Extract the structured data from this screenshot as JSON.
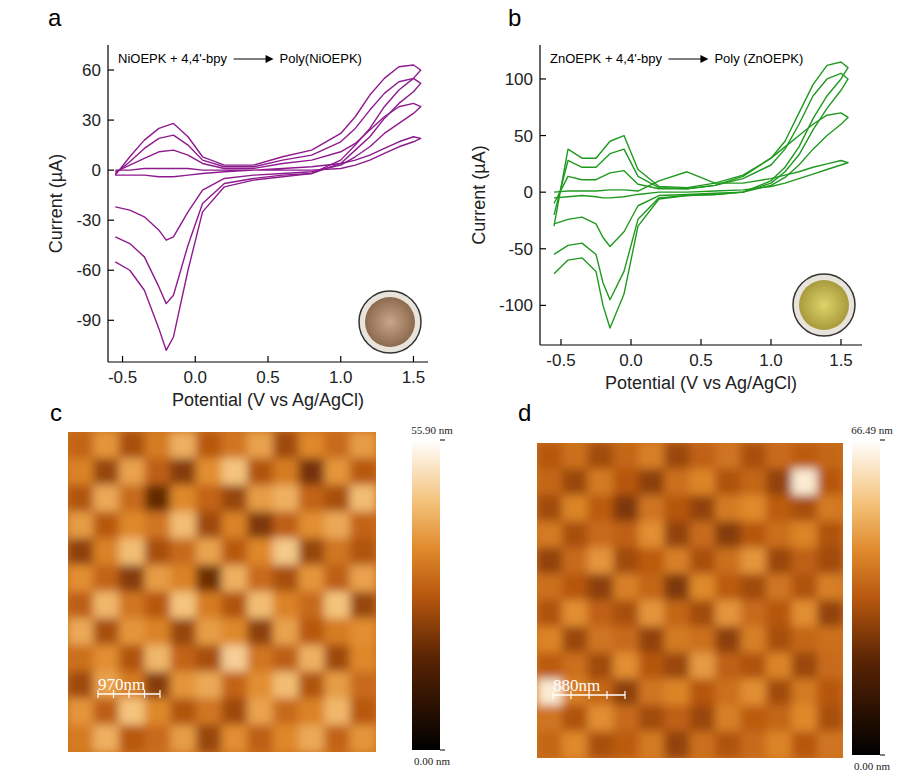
{
  "chart_data": [
    {
      "type": "line",
      "panel_label": "a",
      "annotations": [
        "NiOEPK + 4,4'-bpy",
        "Poly(NiOEPK)"
      ],
      "x_label": "Potential (V vs Ag/AgCl)",
      "y_label": "Current (µA)",
      "xlim": [
        -0.6,
        1.6
      ],
      "xticks": [
        -0.5,
        {
          "value": 0,
          "label": "0.0"
        },
        0.5,
        {
          "value": 1,
          "label": "1.0"
        },
        1.5
      ],
      "ylim": [
        -115,
        75
      ],
      "yticks": [
        -90,
        -60,
        -30,
        0,
        30,
        60
      ],
      "x": [
        -0.55,
        -0.45,
        -0.35,
        -0.25,
        -0.15,
        -0.05,
        0.05,
        0.2,
        0.4,
        0.6,
        0.8,
        1.0,
        1.1,
        1.2,
        1.3,
        1.4,
        1.5,
        1.55,
        1.5,
        1.4,
        1.3,
        1.2,
        1.1,
        1.0,
        0.8,
        0.6,
        0.4,
        0.2,
        0.05,
        -0.05,
        -0.15,
        -0.2,
        -0.25,
        -0.35,
        -0.45,
        -0.55
      ],
      "series": [
        {
          "color": "#8e1a8e",
          "values": [
            0,
            0,
            1,
            1,
            1,
            1,
            0,
            0,
            0,
            1,
            2,
            4,
            6,
            9,
            13,
            17,
            20,
            19,
            17,
            14,
            10,
            6,
            3,
            1,
            0,
            0,
            0,
            -1,
            -2,
            -3,
            -4,
            -4,
            -4,
            -3,
            -3,
            -3
          ]
        },
        {
          "color": "#8e1a8e",
          "values": [
            -1,
            3,
            7,
            11,
            12,
            9,
            4,
            1,
            1,
            4,
            6,
            11,
            16,
            24,
            32,
            38,
            40,
            38,
            34,
            28,
            22,
            14,
            8,
            3,
            -1,
            -2,
            -3,
            -5,
            -12,
            -25,
            -40,
            -42,
            -36,
            -28,
            -24,
            -22
          ]
        },
        {
          "color": "#8e1a8e",
          "values": [
            -2,
            5,
            13,
            19,
            21,
            15,
            6,
            2,
            2,
            6,
            9,
            17,
            25,
            36,
            46,
            53,
            55,
            52,
            47,
            40,
            31,
            20,
            12,
            4,
            -2,
            -3,
            -5,
            -8,
            -20,
            -45,
            -75,
            -80,
            -70,
            -52,
            -44,
            -40
          ]
        },
        {
          "color": "#8e1a8e",
          "values": [
            -3,
            8,
            18,
            25,
            28,
            20,
            8,
            3,
            3,
            8,
            12,
            22,
            32,
            45,
            55,
            62,
            63,
            60,
            55,
            48,
            38,
            25,
            15,
            6,
            -2,
            -4,
            -6,
            -10,
            -25,
            -60,
            -100,
            -108,
            -95,
            -72,
            -60,
            -55
          ]
        }
      ]
    },
    {
      "type": "line",
      "panel_label": "b",
      "annotations": [
        "ZnOEPK + 4,4'-bpy",
        "Poly (ZnOEPK)"
      ],
      "x_label": "Potential (V vs Ag/AgCl)",
      "y_label": "Current (µA)",
      "xlim": [
        -0.65,
        1.65
      ],
      "xticks": [
        -0.5,
        {
          "value": 0,
          "label": "0.0"
        },
        0.5,
        {
          "value": 1,
          "label": "1.0"
        },
        1.5
      ],
      "ylim": [
        -135,
        130
      ],
      "yticks": [
        -100,
        -50,
        0,
        50,
        100
      ],
      "x": [
        -0.55,
        -0.45,
        -0.35,
        -0.25,
        -0.15,
        -0.05,
        0.05,
        0.2,
        0.4,
        0.6,
        0.8,
        1.0,
        1.1,
        1.2,
        1.3,
        1.4,
        1.5,
        1.55,
        1.5,
        1.4,
        1.3,
        1.2,
        1.1,
        1.0,
        0.8,
        0.6,
        0.4,
        0.2,
        0.05,
        -0.05,
        -0.15,
        -0.2,
        -0.25,
        -0.35,
        -0.45,
        -0.55
      ],
      "series": [
        {
          "color": "#1f9a1f",
          "values": [
            0,
            1,
            1,
            1,
            2,
            2,
            1,
            10,
            18,
            8,
            8,
            12,
            15,
            18,
            22,
            25,
            28,
            26,
            24,
            20,
            16,
            12,
            8,
            5,
            2,
            1,
            0,
            0,
            -2,
            -4,
            -5,
            -5,
            -4,
            -3,
            -4,
            -5
          ]
        },
        {
          "color": "#1f9a1f",
          "values": [
            -10,
            14,
            11,
            11,
            17,
            19,
            7,
            3,
            3,
            6,
            14,
            30,
            40,
            50,
            60,
            68,
            70,
            66,
            60,
            50,
            38,
            24,
            13,
            6,
            0,
            -1,
            -2,
            -3,
            -12,
            -35,
            -48,
            -40,
            -28,
            -22,
            -24,
            -28
          ]
        },
        {
          "color": "#1f9a1f",
          "values": [
            -20,
            28,
            22,
            22,
            34,
            38,
            14,
            4,
            3,
            6,
            12,
            24,
            38,
            60,
            85,
            100,
            105,
            100,
            90,
            74,
            55,
            33,
            18,
            8,
            0,
            -2,
            -3,
            -5,
            -24,
            -70,
            -95,
            -80,
            -55,
            -45,
            -47,
            -55
          ]
        },
        {
          "color": "#1f9a1f",
          "values": [
            -30,
            38,
            30,
            30,
            45,
            50,
            20,
            5,
            4,
            8,
            15,
            30,
            45,
            70,
            95,
            112,
            115,
            110,
            100,
            85,
            65,
            40,
            22,
            10,
            0,
            -2,
            -3,
            -6,
            -30,
            -90,
            -120,
            -100,
            -70,
            -58,
            -60,
            -72
          ]
        }
      ]
    },
    {
      "type": "heatmap",
      "panel_label": "c",
      "scale_bar_label": "970nm",
      "colorbar_range": [
        0,
        55.9
      ],
      "colorbar_ticks": [
        {
          "value": 0,
          "label": "0.00 nm"
        },
        {
          "value": 55.9,
          "label": "55.90 nm"
        }
      ],
      "cells": [
        [
          30,
          38,
          26,
          34,
          42,
          28,
          33,
          40,
          25,
          36,
          31,
          39
        ],
        [
          35,
          24,
          40,
          29,
          22,
          37,
          45,
          27,
          34,
          20,
          38,
          28
        ],
        [
          27,
          41,
          31,
          18,
          36,
          30,
          24,
          39,
          42,
          30,
          26,
          44
        ],
        [
          39,
          28,
          36,
          33,
          44,
          25,
          35,
          21,
          29,
          37,
          41,
          30
        ],
        [
          23,
          35,
          44,
          26,
          31,
          40,
          28,
          36,
          46,
          24,
          33,
          27
        ],
        [
          37,
          30,
          22,
          39,
          35,
          19,
          42,
          31,
          26,
          38,
          29,
          40
        ],
        [
          29,
          43,
          33,
          28,
          45,
          34,
          27,
          44,
          35,
          31,
          45,
          24
        ],
        [
          41,
          26,
          38,
          35,
          24,
          39,
          36,
          23,
          40,
          28,
          34,
          37
        ],
        [
          32,
          37,
          27,
          43,
          30,
          26,
          47,
          33,
          29,
          42,
          25,
          36
        ],
        [
          25,
          40,
          34,
          22,
          38,
          41,
          30,
          37,
          44,
          27,
          39,
          31
        ],
        [
          38,
          29,
          45,
          36,
          27,
          33,
          25,
          40,
          31,
          35,
          43,
          28
        ],
        [
          34,
          42,
          28,
          31,
          39,
          24,
          37,
          29,
          36,
          41,
          30,
          38
        ]
      ]
    },
    {
      "type": "heatmap",
      "panel_label": "d",
      "scale_bar_label": "880nm",
      "colorbar_range": [
        0,
        66.49
      ],
      "colorbar_ticks": [
        {
          "value": 0,
          "label": "0.00 nm"
        },
        {
          "value": 66.49,
          "label": "66.49 nm"
        }
      ],
      "cells": [
        [
          33,
          38,
          30,
          36,
          41,
          29,
          35,
          39,
          31,
          37,
          34,
          36
        ],
        [
          36,
          29,
          40,
          33,
          27,
          38,
          42,
          32,
          36,
          28,
          62,
          33
        ],
        [
          30,
          42,
          34,
          25,
          39,
          33,
          28,
          40,
          43,
          34,
          31,
          40
        ],
        [
          40,
          31,
          37,
          35,
          44,
          28,
          37,
          26,
          33,
          38,
          42,
          32
        ],
        [
          28,
          37,
          45,
          30,
          34,
          41,
          31,
          38,
          45,
          29,
          35,
          30
        ],
        [
          38,
          33,
          27,
          41,
          36,
          25,
          43,
          34,
          30,
          39,
          32,
          41
        ],
        [
          32,
          44,
          35,
          31,
          45,
          36,
          30,
          45,
          37,
          33,
          44,
          28
        ],
        [
          42,
          29,
          39,
          37,
          28,
          40,
          38,
          27,
          41,
          31,
          36,
          38
        ],
        [
          34,
          38,
          30,
          44,
          33,
          29,
          46,
          35,
          32,
          42,
          29,
          37
        ],
        [
          62,
          41,
          36,
          27,
          39,
          42,
          33,
          38,
          44,
          30,
          40,
          33
        ],
        [
          39,
          32,
          44,
          37,
          30,
          35,
          29,
          41,
          34,
          36,
          43,
          31
        ],
        [
          36,
          43,
          31,
          34,
          40,
          28,
          38,
          32,
          37,
          42,
          33,
          39
        ]
      ]
    }
  ]
}
